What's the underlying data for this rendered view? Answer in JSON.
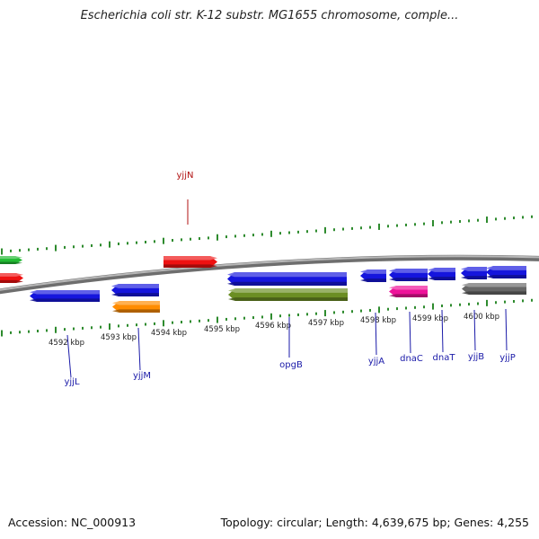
{
  "title": "Escherichia coli str. K-12 substr. MG1655 chromosome, comple...",
  "footer": {
    "accession": "Accession: NC_000913",
    "topology": "Topology: circular; Length: 4,639,675 bp; Genes: 4,255"
  },
  "colors": {
    "backbone": "#8a8a8a",
    "forward_tick": "#2e8b2e",
    "reverse_tick": "#2e8b2e",
    "label_blue": "#1a1aa8",
    "label_red": "#b01010"
  },
  "scale": {
    "ticks": [
      "4592 kbp",
      "4593 kbp",
      "4594 kbp",
      "4595 kbp",
      "4596 kbp",
      "4597 kbp",
      "4598 kbp",
      "4599 kbp",
      "4600 kbp"
    ]
  },
  "genes": [
    {
      "name": "",
      "color": "#22bb33",
      "strand": "forward"
    },
    {
      "name": "",
      "color": "#ee1111",
      "strand": "forward"
    },
    {
      "name": "yjjN",
      "color": "#ee1111",
      "strand": "forward"
    },
    {
      "name": "yjjL",
      "color": "#1515dd",
      "strand": "reverse"
    },
    {
      "name": "yjjM",
      "color": "#1515dd",
      "strand": "reverse"
    },
    {
      "name": "",
      "color": "#ff8c00",
      "strand": "reverse"
    },
    {
      "name": "opgB",
      "color": "#1515dd",
      "strand": "reverse"
    },
    {
      "name": "",
      "color": "#6b8e23",
      "strand": "reverse"
    },
    {
      "name": "yjjA",
      "color": "#1515dd",
      "strand": "reverse"
    },
    {
      "name": "dnaC",
      "color": "#1515dd",
      "strand": "reverse"
    },
    {
      "name": "",
      "color": "#ee1199",
      "strand": "reverse"
    },
    {
      "name": "dnaT",
      "color": "#1515dd",
      "strand": "reverse"
    },
    {
      "name": "yjjB",
      "color": "#1515dd",
      "strand": "reverse"
    },
    {
      "name": "yjjP",
      "color": "#1515dd",
      "strand": "reverse"
    },
    {
      "name": "",
      "color": "#666666",
      "strand": "reverse"
    }
  ]
}
